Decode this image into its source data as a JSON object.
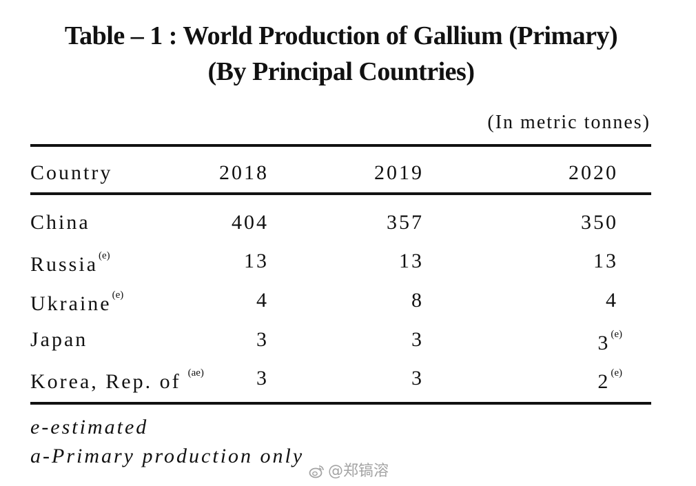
{
  "title": {
    "line1": "Table – 1 : World Production of Gallium (Primary)",
    "line2": "(By Principal Countries)"
  },
  "unit_note": "(In metric tonnes)",
  "table": {
    "headers": [
      "Country",
      "2018",
      "2019",
      "2020"
    ],
    "rows": [
      {
        "country": "China",
        "country_sup": "",
        "v2018": "404",
        "v2019": "357",
        "v2020": "350",
        "v2020_sup": ""
      },
      {
        "country": "Russia",
        "country_sup": "(e)",
        "v2018": "13",
        "v2019": "13",
        "v2020": "13",
        "v2020_sup": ""
      },
      {
        "country": "Ukraine",
        "country_sup": "(e)",
        "v2018": "4",
        "v2019": "8",
        "v2020": "4",
        "v2020_sup": ""
      },
      {
        "country": "Japan",
        "country_sup": "",
        "v2018": "3",
        "v2019": "3",
        "v2020": "3",
        "v2020_sup": "(e)"
      },
      {
        "country": "Korea, Rep. of",
        "country_sup": "(ae)",
        "v2018": "3",
        "v2019": "3",
        "v2020": "2",
        "v2020_sup": "(e)"
      }
    ]
  },
  "footnotes": [
    "e-estimated",
    "a-Primary production only"
  ],
  "watermark": {
    "text": "@郑镐溶",
    "icon": "weibo-logo-icon"
  }
}
